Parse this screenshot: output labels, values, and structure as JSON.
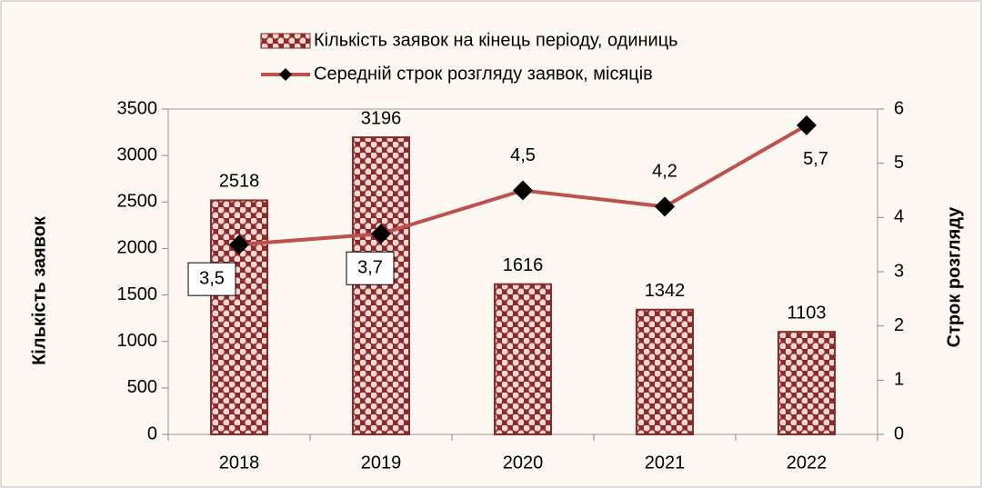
{
  "chart_data": {
    "type": "bar",
    "categories": [
      "2018",
      "2019",
      "2020",
      "2021",
      "2022"
    ],
    "series": [
      {
        "name": "Кількість заявок на кінець періоду, одиниць",
        "type": "bar",
        "color": "#8b2a2a",
        "values": [
          2518,
          3196,
          1616,
          1342,
          1103
        ]
      },
      {
        "name": "Середній строк розгляду заявок, місяців",
        "type": "line",
        "axis": "y2",
        "color": "#c0504d",
        "values": [
          3.5,
          3.7,
          4.5,
          4.2,
          5.7
        ],
        "value_labels": [
          "3,5",
          "3,7",
          "4,5",
          "4,2",
          "5,7"
        ]
      }
    ],
    "ylabel": "Кількість заявок",
    "y2label": "Строк розгляду",
    "ylim": [
      0,
      3500
    ],
    "yticks": [
      0,
      500,
      1000,
      1500,
      2000,
      2500,
      3000,
      3500
    ],
    "y2lim": [
      0,
      6
    ],
    "y2ticks": [
      0,
      1,
      2,
      3,
      4,
      5,
      6
    ],
    "grid": false,
    "legend": "top"
  }
}
